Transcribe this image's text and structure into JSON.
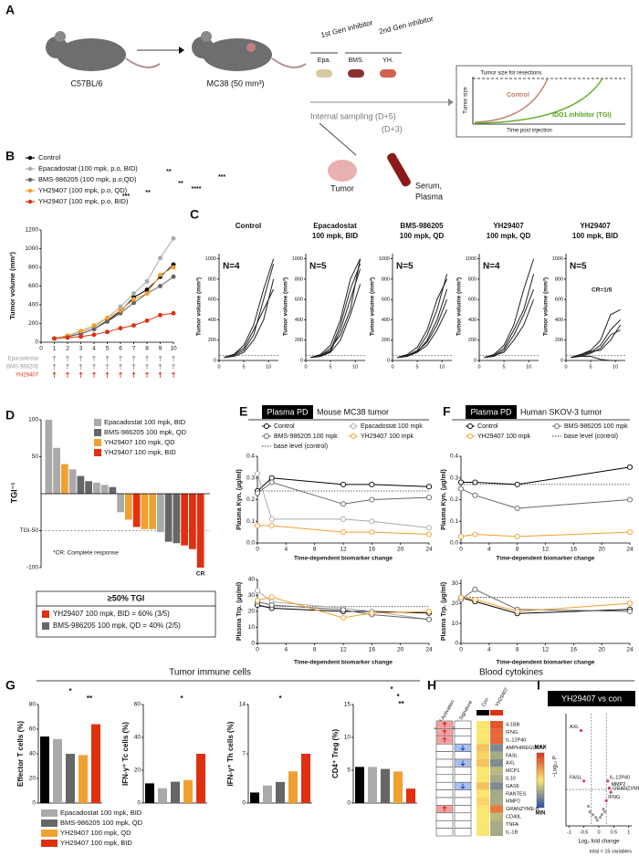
{
  "panel_letters": [
    "A",
    "B",
    "C",
    "D",
    "E",
    "F",
    "G",
    "H",
    "I"
  ],
  "A": {
    "mouse1": "C57BL/6",
    "mouse2": "MC38 (50 mm³)",
    "gen1": "1st Gen inhibitor",
    "gen2": "2nd Gen inhibitor",
    "drugs": [
      "Epa.",
      "BMS.",
      "YH."
    ],
    "sampling": "Internal sampling (D+5)",
    "sampling2": "(D+3)",
    "tumor": "Tumor",
    "serum": [
      "Serum,",
      "Plasma"
    ],
    "inset": {
      "threshold": "Tumor size for resections",
      "ylabel": "Tumor size",
      "xlabel": "Time post injection",
      "control": "Control",
      "treated": "IDO1 inhibitor (TGI)"
    }
  },
  "B": {
    "type": "line",
    "ylabel": "Tumor volume (mm³)",
    "x": [
      1,
      2,
      3,
      4,
      5,
      6,
      7,
      8,
      9,
      10
    ],
    "xlim": [
      0,
      10
    ],
    "xticks": [
      0,
      1,
      2,
      3,
      4,
      5,
      6,
      7,
      8,
      9,
      10
    ],
    "ylim": [
      0,
      1200
    ],
    "yticks": [
      0,
      200,
      400,
      600,
      800,
      1000,
      1200
    ],
    "series": [
      {
        "name": "Control",
        "color": "#000000",
        "values": [
          40,
          60,
          90,
          140,
          230,
          330,
          480,
          560,
          700,
          830
        ]
      },
      {
        "name": "Epacadostat (100 mpk, p.o, BID)",
        "color": "#aaaaaa",
        "values": [
          40,
          70,
          110,
          160,
          260,
          380,
          520,
          650,
          900,
          1110
        ]
      },
      {
        "name": "BMS-986205 (100 mpk, p.o,QD)",
        "color": "#666666",
        "values": [
          40,
          60,
          90,
          140,
          220,
          310,
          420,
          520,
          600,
          700
        ]
      },
      {
        "name": "YH29407 (100 mpk, p.o, QD)",
        "color": "#f0a030",
        "values": [
          40,
          70,
          120,
          180,
          260,
          340,
          460,
          520,
          720,
          800
        ]
      },
      {
        "name": "YH29407 (100 mpk, p.o, BID)",
        "color": "#e03010",
        "values": [
          40,
          50,
          60,
          80,
          110,
          150,
          180,
          230,
          290,
          310
        ]
      }
    ],
    "significance": [
      "**",
      "**",
      "****",
      "***",
      "***",
      "**"
    ],
    "dosing": {
      "rows": [
        "Epacadostat",
        "BMS-986205",
        "YH29407"
      ],
      "colors": [
        "#999999",
        "#999999",
        "#e03010"
      ],
      "days": [
        1,
        2,
        3,
        4,
        5,
        6,
        7,
        8,
        9,
        10
      ]
    }
  },
  "C": {
    "type": "line",
    "ylabel": "Tumor volume (mm³)",
    "x": [
      1,
      3,
      5,
      7,
      9,
      11
    ],
    "xlim": [
      0,
      12
    ],
    "xticks": [
      0,
      5,
      10
    ],
    "ylim": [
      0,
      1050
    ],
    "yticks": [
      0,
      200,
      400,
      600,
      800,
      1000
    ],
    "dashed_level": 50,
    "cr_label": "CR=1/5",
    "plots": [
      {
        "title": [
          "Control"
        ],
        "n_label": "N=4",
        "lines": [
          [
            30,
            60,
            150,
            350,
            700,
            1000
          ],
          [
            30,
            50,
            100,
            250,
            600,
            950
          ],
          [
            30,
            60,
            120,
            300,
            500,
            700
          ],
          [
            30,
            40,
            80,
            200,
            400,
            800
          ]
        ]
      },
      {
        "title": [
          "Epacadostat",
          "100 mpk, BID"
        ],
        "n_label": "N=5",
        "lines": [
          [
            30,
            60,
            150,
            400,
            800,
            1000
          ],
          [
            30,
            50,
            100,
            350,
            700,
            950
          ],
          [
            30,
            40,
            90,
            300,
            600,
            900
          ],
          [
            30,
            50,
            120,
            250,
            500,
            1000
          ],
          [
            30,
            40,
            80,
            200,
            450,
            750
          ]
        ]
      },
      {
        "title": [
          "BMS-986205",
          "100 mpk, QD"
        ],
        "n_label": "N=5",
        "lines": [
          [
            30,
            50,
            100,
            250,
            500,
            850
          ],
          [
            30,
            40,
            80,
            200,
            400,
            700
          ],
          [
            30,
            60,
            130,
            300,
            600,
            800
          ],
          [
            30,
            40,
            90,
            180,
            350,
            600
          ],
          [
            30,
            50,
            80,
            150,
            300,
            500
          ]
        ]
      },
      {
        "title": [
          "YH29407",
          "100 mpk, QD"
        ],
        "n_label": "N=4",
        "lines": [
          [
            30,
            60,
            150,
            350,
            700,
            1000
          ],
          [
            30,
            50,
            120,
            300,
            500,
            850
          ],
          [
            30,
            40,
            100,
            250,
            450,
            700
          ],
          [
            30,
            50,
            80,
            200,
            350,
            600
          ]
        ]
      },
      {
        "title": [
          "YH29407",
          "100 mpk, BID"
        ],
        "n_label": "N=5",
        "lines": [
          [
            30,
            60,
            100,
            200,
            450,
            500
          ],
          [
            30,
            50,
            80,
            150,
            300,
            400
          ],
          [
            30,
            40,
            70,
            120,
            250,
            300
          ],
          [
            30,
            60,
            90,
            100,
            200,
            350
          ],
          [
            30,
            40,
            40,
            10,
            0,
            0
          ]
        ]
      }
    ]
  },
  "D": {
    "type": "bar",
    "ylabel": "TGI⁻¹",
    "ylim": [
      -100,
      100
    ],
    "yticks": [
      100,
      50,
      {
        "value": -50,
        "label": "TGI-50"
      },
      -100
    ],
    "groups": [
      {
        "name": "Epacadostat 100 mpk, BID",
        "color": "#aaaaaa"
      },
      {
        "name": "BMS-986205 100 mpk, QD",
        "color": "#666666"
      },
      {
        "name": "YH29407 100 mpk, QD",
        "color": "#f0a030"
      },
      {
        "name": "YH29407 100 mpk, BID",
        "color": "#e03010"
      }
    ],
    "values": [
      100,
      62,
      40,
      33,
      24,
      17,
      15,
      12,
      9,
      -25,
      -35,
      -45,
      -48,
      -48,
      -52,
      -65,
      -67,
      -70,
      -75,
      -100
    ],
    "bar_groups": [
      0,
      0,
      2,
      0,
      1,
      1,
      0,
      0,
      1,
      0,
      2,
      3,
      2,
      2,
      0,
      1,
      1,
      3,
      3,
      3
    ],
    "cr": "CR",
    "note": "*CR: Complete response",
    "tgi_box": {
      "title": "≥50% TGI",
      "lines": [
        "YH29407 100 mpk, BID = 60% (3/5)",
        "BMS-986205 100 mpk, QD = 40% (2/5)"
      ],
      "colors": [
        "#e03010",
        "#666666"
      ]
    }
  },
  "E": {
    "type": "line",
    "header_box": "Plasma PD",
    "header": "Mouse MC38 tumor",
    "base_label": "base level (control)",
    "x": [
      0,
      2,
      12,
      16,
      24
    ],
    "xlim": [
      0,
      24
    ],
    "xticks": [
      0,
      4,
      8,
      12,
      16,
      20,
      24
    ],
    "xlabel": "Time-dependent biomarker change",
    "kyn": {
      "ylabel": "Plasma Kyn. (µg/ml)",
      "ylim": [
        0,
        0.4
      ],
      "yticks": [
        {
          "value": 0,
          "label": "0.0"
        },
        0.1,
        0.2,
        0.3,
        0.4
      ],
      "base": 0.24
    },
    "trp": {
      "ylabel": "Plasma Trp. (µg/ml)",
      "ylim": [
        0,
        40
      ],
      "yticks": [
        0,
        10,
        20,
        30,
        40
      ],
      "base": 23
    },
    "series": [
      {
        "name": "Control",
        "color": "#000000",
        "kyn": [
          0.24,
          0.3,
          0.27,
          0.27,
          0.26
        ],
        "trp": [
          24,
          22,
          20,
          20,
          19
        ]
      },
      {
        "name": "Epacadostat 100 mpk",
        "color": "#aaaaaa",
        "kyn": [
          0.32,
          0.11,
          0.11,
          0.1,
          0.07
        ],
        "trp": [
          33,
          26,
          22,
          20,
          15
        ]
      },
      {
        "name": "BMS-986205 100 mpk",
        "color": "#666666",
        "kyn": [
          0.23,
          0.28,
          0.18,
          0.2,
          0.21
        ],
        "trp": [
          26,
          24,
          21,
          18,
          15
        ]
      },
      {
        "name": "YH29407 100 mpk",
        "color": "#f0a030",
        "kyn": [
          0.08,
          0.08,
          0.05,
          0.05,
          0.04
        ],
        "trp": [
          27,
          29,
          16,
          19,
          20
        ]
      }
    ]
  },
  "F": {
    "type": "line",
    "header_box": "Plasma PD",
    "header": "Human SKOV-3 tumor",
    "base_label": "base level (control)",
    "x": [
      0,
      2,
      8,
      24
    ],
    "xlim": [
      0,
      24
    ],
    "xticks": [
      0,
      4,
      8,
      12,
      16,
      20,
      24
    ],
    "xlabel": "Time-dependent biomarker change",
    "kyn": {
      "ylabel": "Plasma Kyn. (µg/ml)",
      "ylim": [
        0,
        0.4
      ],
      "yticks": [
        {
          "value": 0,
          "label": "0.0"
        },
        0.1,
        0.2,
        0.3,
        0.4
      ],
      "base": 0.27
    },
    "trp": {
      "ylabel": "Plasma Trp. (µg/ml)",
      "ylim": [
        0,
        32
      ],
      "yticks": [
        0,
        10,
        20,
        30
      ],
      "base": 23
    },
    "series": [
      {
        "name": "Control",
        "color": "#000000",
        "kyn": [
          0.28,
          0.28,
          0.27,
          0.35
        ],
        "trp": [
          23,
          21,
          15,
          17
        ]
      },
      {
        "name": "BMS-986205 100 mpk",
        "color": "#666666",
        "kyn": [
          0.25,
          0.22,
          0.16,
          0.2
        ],
        "trp": [
          22,
          27,
          17,
          16
        ]
      },
      {
        "name": "YH29407 100 mpk",
        "color": "#f0a030",
        "kyn": [
          0.03,
          0.04,
          0.03,
          0.05
        ],
        "trp": [
          23,
          22,
          16,
          20
        ]
      }
    ]
  },
  "G": {
    "type": "bar",
    "title": "Tumor immune cells",
    "colors": [
      "#000000",
      "#aaaaaa",
      "#666666",
      "#f0a030",
      "#e03010"
    ],
    "legend": [
      "Epacadostat 100 mpk, BID",
      "BMS-986205 100 mpk, QD",
      "YH29407 100 mpk, QD",
      "YH29407 100 mpk, BID"
    ],
    "charts": [
      {
        "ylabel": "Effector T cells (%)",
        "ylim": [
          0,
          80
        ],
        "yticks": [
          0,
          20,
          40,
          60,
          80
        ],
        "values": [
          54,
          52,
          40,
          39,
          64
        ],
        "stars": [
          "*",
          "**"
        ]
      },
      {
        "ylabel": "IFN-γ⁺ Tc cells (%)",
        "ylim": [
          0,
          60
        ],
        "yticks": [
          0,
          20,
          40,
          60
        ],
        "values": [
          12,
          9,
          13,
          14,
          30
        ],
        "stars": [
          "*"
        ]
      },
      {
        "ylabel": "IFN-γ⁺ Th cells (%)",
        "ylim": [
          0,
          14
        ],
        "yticks": [
          0,
          7,
          14
        ],
        "values": [
          1.5,
          2.5,
          3,
          4.5,
          7
        ],
        "stars": [
          "*"
        ]
      },
      {
        "ylabel": "CD4⁺ Treg (%)",
        "ylim": [
          0,
          15
        ],
        "yticks": [
          0,
          5,
          10,
          15
        ],
        "values": [
          5.5,
          5.5,
          5.2,
          4.8,
          2.2
        ],
        "stars": [
          "*",
          "*",
          "**"
        ]
      }
    ]
  },
  "H": {
    "title": "Blood cytokines",
    "column_labels": [
      "T cell Activation",
      "EMT Signature"
    ],
    "group_labels": [
      "Con",
      "YH29407"
    ],
    "rows": [
      "4-1BB",
      "IFNG",
      "IL-12P40",
      "AMPHIREGULIN",
      "FASL",
      "AXL",
      "MCP1",
      "IL10",
      "GAS6",
      "RANTES",
      "MMP2",
      "GRANZYME-B",
      "CD40L",
      "TNFA",
      "IL-1B"
    ],
    "con": [
      0.5,
      0.5,
      0.5,
      0.6,
      0.55,
      0.6,
      0.5,
      0.5,
      0.6,
      0.5,
      0.55,
      0.5,
      0.5,
      0.5,
      0.5
    ],
    "yh": [
      0.9,
      0.85,
      0.85,
      0.2,
      0.3,
      0.2,
      0.35,
      0.3,
      0.2,
      0.3,
      0.3,
      0.8,
      0.35,
      0.3,
      0.3
    ],
    "up_rows": [
      0,
      1,
      2,
      11
    ],
    "down_rows": [
      3,
      5,
      8
    ],
    "max": "MAX",
    "min": "MIN"
  },
  "I": {
    "type": "scatter",
    "title": "YH29407 vs con",
    "ylabel": "−Log₁₀ P",
    "xlabel": "Log₂ fold change",
    "footer": "total = 15 variables",
    "xlim": [
      -1.1,
      1.1
    ],
    "xticks": [
      -1,
      -0.5,
      0,
      0.5,
      1
    ],
    "ylim": [
      0,
      4
    ],
    "thresholds": {
      "x": [
        -0.25,
        0.25
      ],
      "y": 1.3
    },
    "points": [
      {
        "x": -0.6,
        "y": 3.4,
        "label": "AXL"
      },
      {
        "x": -0.5,
        "y": 1.6,
        "label": "FASL"
      },
      {
        "x": 0.3,
        "y": 1.6,
        "label": "IL-12P40"
      },
      {
        "x": 0.35,
        "y": 1.35,
        "label": "MMP2"
      },
      {
        "x": 0.4,
        "y": 1.2,
        "label": "GRANZYME-B"
      },
      {
        "x": 0.25,
        "y": 0.9,
        "label": "IFNG"
      },
      {
        "x": -0.3,
        "y": 0.5,
        "label": null
      },
      {
        "x": -0.2,
        "y": 0.4,
        "label": null
      },
      {
        "x": -0.1,
        "y": 0.3,
        "label": null
      },
      {
        "x": 0.1,
        "y": 0.4,
        "label": null
      },
      {
        "x": 0.15,
        "y": 0.6,
        "label": null
      },
      {
        "x": -0.05,
        "y": 0.2,
        "label": null
      },
      {
        "x": 0.2,
        "y": 0.5,
        "label": null
      },
      {
        "x": -0.35,
        "y": 0.7,
        "label": null
      },
      {
        "x": 0.05,
        "y": 0.3,
        "label": null
      }
    ]
  }
}
